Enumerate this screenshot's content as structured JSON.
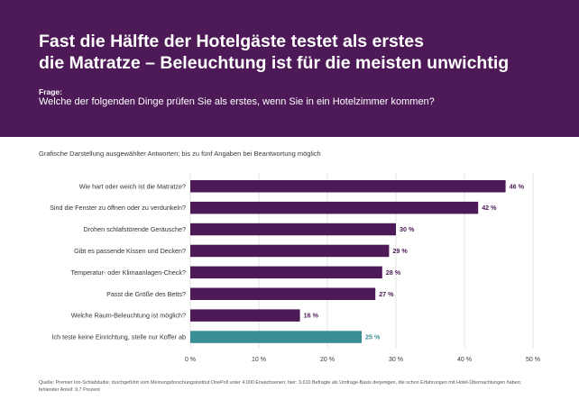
{
  "header": {
    "title_line1": "Fast die Hälfte der Hotelgäste testet als erstes",
    "title_line2": "die Matratze – Beleuchtung ist für die meisten unwichtig",
    "question_label": "Frage:",
    "question_text": "Welche der folgenden Dinge prüfen Sie als erstes, wenn Sie in ein Hotelzimmer kommen?"
  },
  "subtitle": "Grafische Darstellung ausgewählter Antworten; bis zu fünf Angaben bei Beantwortung möglich",
  "source": "Quelle: Premier Inn-Schlafstudie; durchgeführt vom Meinungsforschungsinstitut OnePoll unter 4.000 Erwachsenen; hier: 3.610 Befragte als Umfrage-Basis derjenigen, die schon Erfahrungen mit Hotel-Übernachtungen haben; fehlender Anteil: 9,7 Prozent",
  "colors": {
    "header_bg": "#4d1a57",
    "bar_primary": "#4d1a57",
    "bar_highlight": "#3a8f94",
    "grid": "#d0d0d0"
  },
  "chart_data": {
    "type": "bar",
    "orientation": "horizontal",
    "categories": [
      "Wie hart oder weich ist die Matratze?",
      "Sind die Fenster zu öffnen oder zu verdunkeln?",
      "Drohen schlafstörende Geräusche?",
      "Gibt es passende Kissen und Decken?",
      "Temperatur- oder Klimaanlagen-Check?",
      "Passt die Größe des Betts?",
      "Welche Raum-Beleuchtung ist möglich?",
      "Ich teste keine Einrichtung, stelle nur Koffer ab"
    ],
    "values": [
      46,
      42,
      30,
      29,
      28,
      27,
      16,
      25
    ],
    "value_labels": [
      "46 %",
      "42 %",
      "30 %",
      "29 %",
      "28 %",
      "27 %",
      "16 %",
      "25 %"
    ],
    "highlight_index": 7,
    "xlim": [
      0,
      50
    ],
    "xticks": [
      0,
      10,
      20,
      30,
      40,
      50
    ],
    "xtick_labels": [
      "0 %",
      "10 %",
      "20 %",
      "30 %",
      "40 %",
      "50 %"
    ],
    "grid": true
  }
}
